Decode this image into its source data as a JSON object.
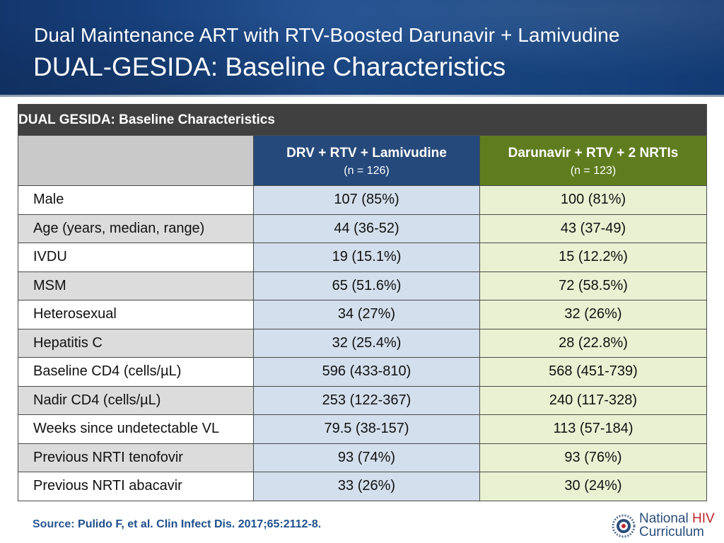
{
  "header": {
    "title_line1": "Dual Maintenance ART with RTV-Boosted Darunavir + Lamivudine",
    "title_line2": "DUAL-GESIDA: Baseline Characteristics"
  },
  "table": {
    "title": "DUAL GESIDA: Baseline Characteristics",
    "arms": [
      {
        "label": "DRV + RTV  + Lamivudine",
        "n": "(n = 126)",
        "color": "#25497a"
      },
      {
        "label": "Darunavir + RTV + 2 NRTIs",
        "n": "(n = 123)",
        "color": "#5f7d1f"
      }
    ],
    "rows": [
      {
        "label": "Male",
        "arm1": "107 (85%)",
        "arm2": "100 (81%)"
      },
      {
        "label": "Age (years, median, range)",
        "arm1": "44 (36-52)",
        "arm2": "43 (37-49)"
      },
      {
        "label": "IVDU",
        "arm1": "19 (15.1%)",
        "arm2": "15 (12.2%)"
      },
      {
        "label": "MSM",
        "arm1": "65 (51.6%)",
        "arm2": "72 (58.5%)"
      },
      {
        "label": "Heterosexual",
        "arm1": "34 (27%)",
        "arm2": "32 (26%)"
      },
      {
        "label": "Hepatitis C",
        "arm1": "32 (25.4%)",
        "arm2": "28 (22.8%)"
      },
      {
        "label": "Baseline CD4 (cells/µL)",
        "arm1": "596 (433-810)",
        "arm2": "568 (451-739)"
      },
      {
        "label": "Nadir CD4 (cells/µL)",
        "arm1": "253 (122-367)",
        "arm2": "240 (117-328)"
      },
      {
        "label": "Weeks since undetectable VL",
        "arm1": "79.5 (38-157)",
        "arm2": "113 (57-184)"
      },
      {
        "label": "Previous NRTI tenofovir",
        "arm1": "93 (74%)",
        "arm2": "93 (76%)"
      },
      {
        "label": "Previous NRTI abacavir",
        "arm1": "33 (26%)",
        "arm2": "30 (24%)"
      }
    ]
  },
  "source": {
    "label": "Source:",
    "reference": "Pulido F, et al. Clin Infect Dis. 2017;65:2112-8."
  },
  "logo": {
    "line1": "National",
    "line1_accent": "HIV",
    "line2": "Curriculum",
    "icon": "seal-icon"
  }
}
